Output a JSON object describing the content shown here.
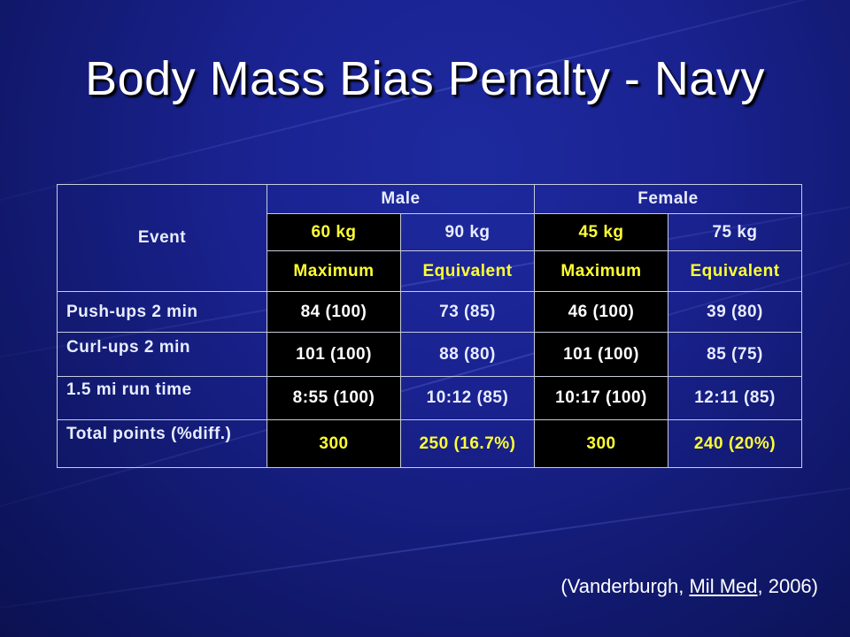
{
  "slide": {
    "title": "Body Mass Bias Penalty - Navy"
  },
  "table": {
    "event_header": "Event",
    "groups": [
      "Male",
      "Female"
    ],
    "weights": [
      "60 kg",
      "90 kg",
      "45 kg",
      "75 kg"
    ],
    "score_types": [
      "Maximum",
      "Equivalent",
      "Maximum",
      "Equivalent"
    ],
    "rows": [
      {
        "event": "Push-ups 2 min",
        "values": [
          "84 (100)",
          "73 (85)",
          "46 (100)",
          "39 (80)"
        ]
      },
      {
        "event": "Curl-ups 2 min",
        "values": [
          "101 (100)",
          "88 (80)",
          "101 (100)",
          "85 (75)"
        ]
      },
      {
        "event": "1.5 mi run time",
        "values": [
          "8:55 (100)",
          "10:12 (85)",
          "10:17 (100)",
          "12:11 (85)"
        ]
      },
      {
        "event": "Total points (%diff.)",
        "values": [
          "300",
          "250 (16.7%)",
          "300",
          "240 (20%)"
        ]
      }
    ]
  },
  "citation": {
    "open": "(Vanderburgh, ",
    "journal": "Mil Med",
    "close": ", 2006)"
  }
}
